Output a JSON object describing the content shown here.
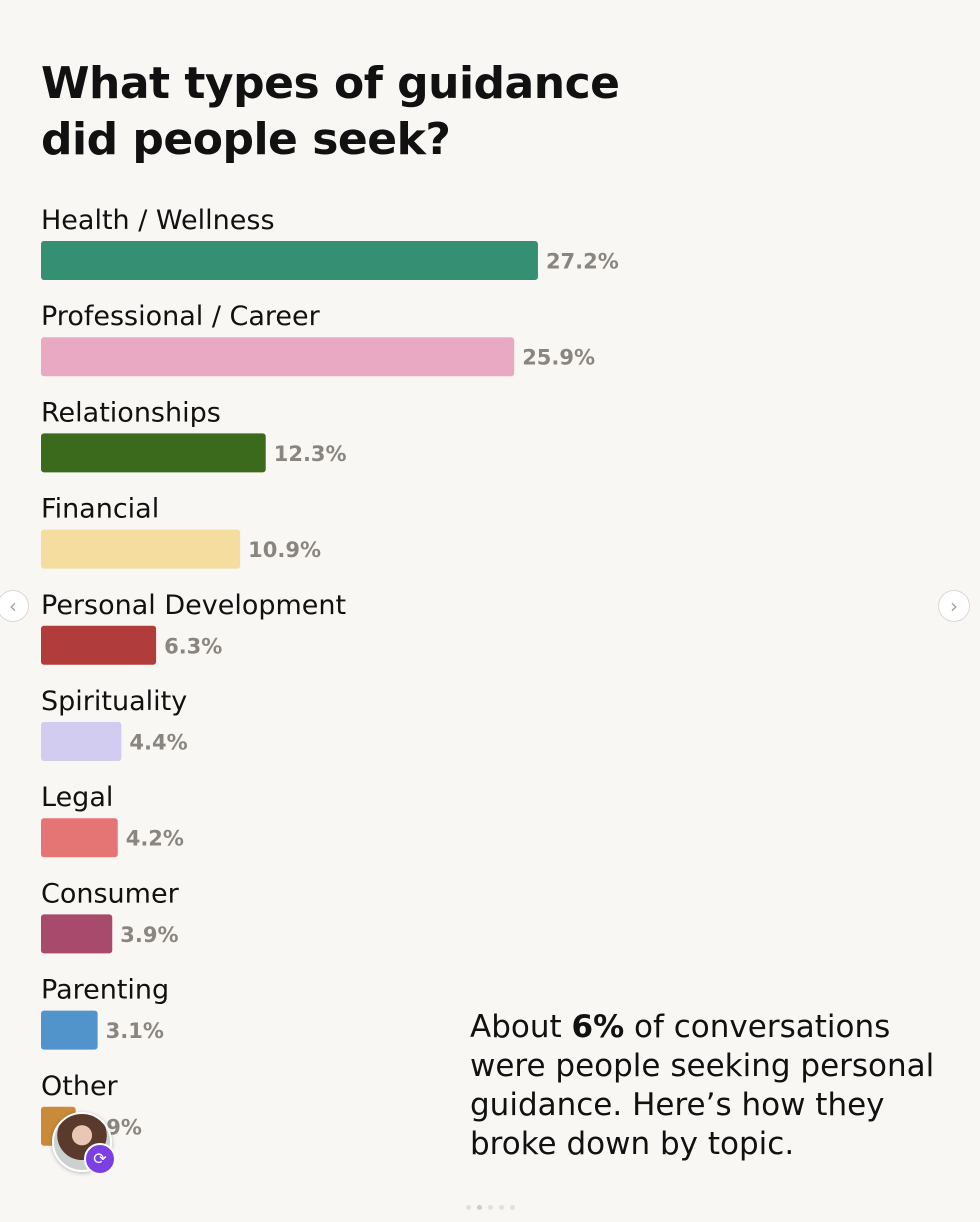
{
  "chart_data": {
    "type": "bar",
    "orientation": "horizontal",
    "title": "What types of guidance did people seek?",
    "categories": [
      "Health / Wellness",
      "Professional / Career",
      "Relationships",
      "Financial",
      "Personal Development",
      "Spirituality",
      "Legal",
      "Consumer",
      "Parenting",
      "Other"
    ],
    "values": [
      27.2,
      25.9,
      12.3,
      10.9,
      6.3,
      4.4,
      4.2,
      3.9,
      3.1,
      1.9
    ],
    "value_labels": [
      "27.2%",
      "25.9%",
      "12.3%",
      "10.9%",
      "6.3%",
      "4.4%",
      "4.2%",
      "3.9%",
      "3.1%",
      "1.9%"
    ],
    "colors": [
      "#358f73",
      "#e9a9c3",
      "#3b6a1c",
      "#f5dc9f",
      "#b13c3c",
      "#d2ccf0",
      "#e57474",
      "#a84a6c",
      "#5194cc",
      "#c98a3a"
    ],
    "xlim": [
      0,
      30
    ],
    "grid": false,
    "legend": "none"
  },
  "note": {
    "prefix": "About ",
    "highlight": "6%",
    "suffix": " of conversations were people seeking personal guidance. Here’s how they broke down by topic."
  },
  "nav": {
    "prev": "‹",
    "next": "›"
  },
  "icons": {
    "avatar_badge": "refresh-icon"
  }
}
